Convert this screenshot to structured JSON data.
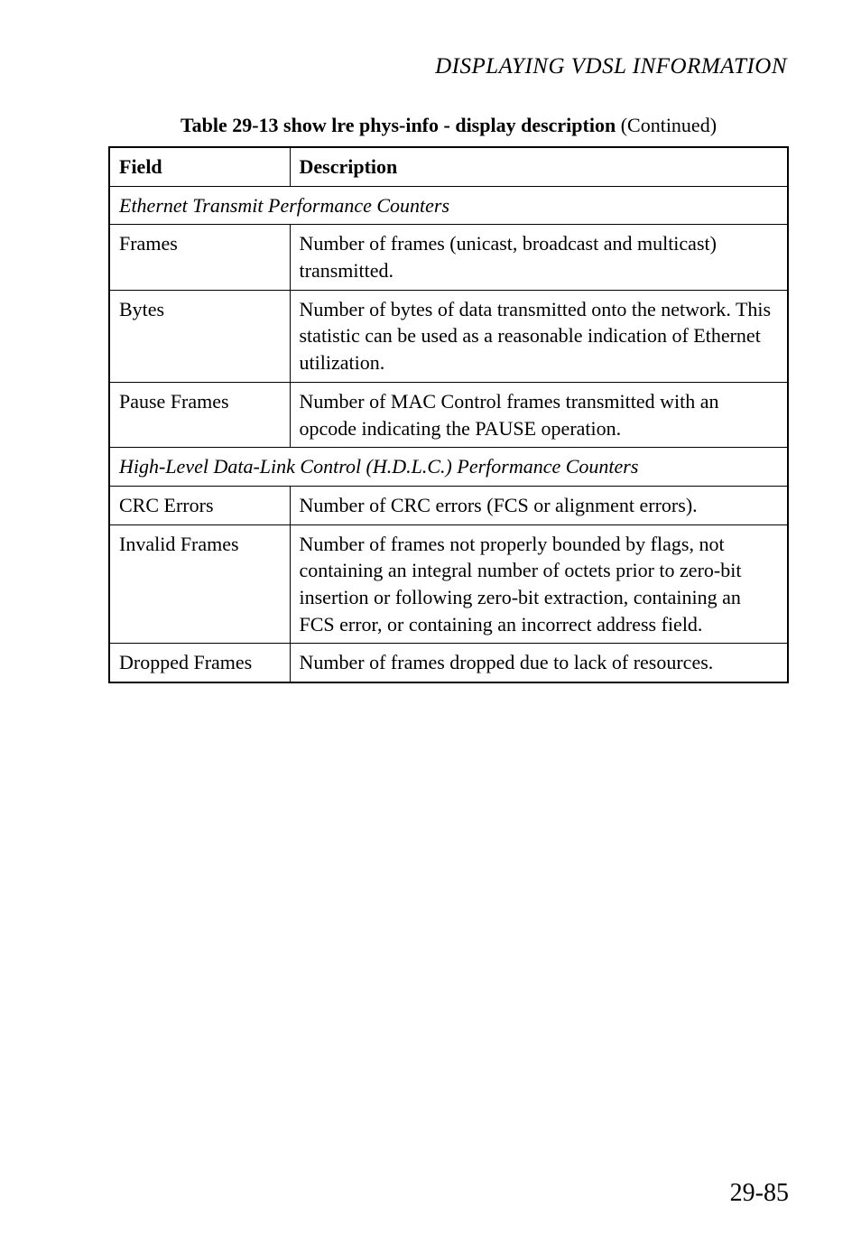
{
  "running_head": "DISPLAYING VDSL INFORMATION",
  "caption": {
    "prefix": "Table 29-13  show lre phys-info - display description",
    "suffix": " (Continued)"
  },
  "header": {
    "field": "Field",
    "description": "Description"
  },
  "section_a": "Ethernet Transmit Performance Counters",
  "rows_a": [
    {
      "field": "Frames",
      "desc": "Number of frames (unicast, broadcast and multicast) transmitted."
    },
    {
      "field": "Bytes",
      "desc": "Number of bytes of data transmitted onto the network. This statistic can be used as a reasonable indication of Ethernet utilization."
    },
    {
      "field": "Pause Frames",
      "desc": "Number of MAC Control frames transmitted with an opcode indicating the PAUSE operation."
    }
  ],
  "section_b": "High-Level Data-Link Control (H.D.L.C.) Performance Counters",
  "rows_b": [
    {
      "field": "CRC Errors",
      "desc": "Number of CRC errors (FCS or alignment errors)."
    },
    {
      "field": "Invalid Frames",
      "desc": "Number of frames not properly bounded by flags, not containing an integral number of octets prior to zero-bit insertion or following zero-bit extraction, containing an FCS error, or containing an incorrect address field."
    },
    {
      "field": "Dropped Frames",
      "desc": "Number of frames dropped due to lack of resources."
    }
  ],
  "page_number": "29-85"
}
